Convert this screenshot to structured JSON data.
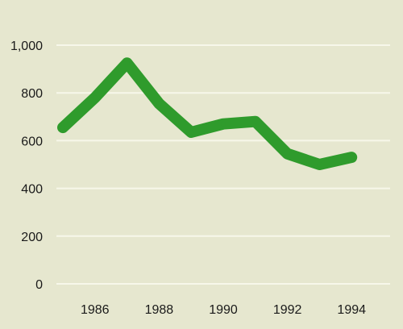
{
  "chart_data": {
    "type": "line",
    "title": "",
    "xlabel": "",
    "ylabel": "",
    "x": [
      1985,
      1986,
      1987,
      1988,
      1989,
      1990,
      1991,
      1992,
      1993,
      1994
    ],
    "series": [
      {
        "values": [
          655,
          780,
          925,
          755,
          635,
          670,
          680,
          545,
          500,
          530
        ]
      }
    ],
    "xlim": [
      1984.8,
      1995.2
    ],
    "ylim": [
      0,
      1000
    ],
    "x_ticks": [
      1986,
      1988,
      1990,
      1992,
      1994
    ],
    "x_tick_labels": [
      "1986",
      "1988",
      "1990",
      "1992",
      "1994"
    ],
    "y_ticks": [
      0,
      200,
      400,
      600,
      800,
      1000
    ],
    "y_tick_labels": [
      "0",
      "200",
      "400",
      "600",
      "800",
      "1,000"
    ],
    "grid": true,
    "legend": "none",
    "colors": {
      "background": "#e6e7cf",
      "grid": "#f7f7ea",
      "line": "#2f9b2c"
    }
  }
}
